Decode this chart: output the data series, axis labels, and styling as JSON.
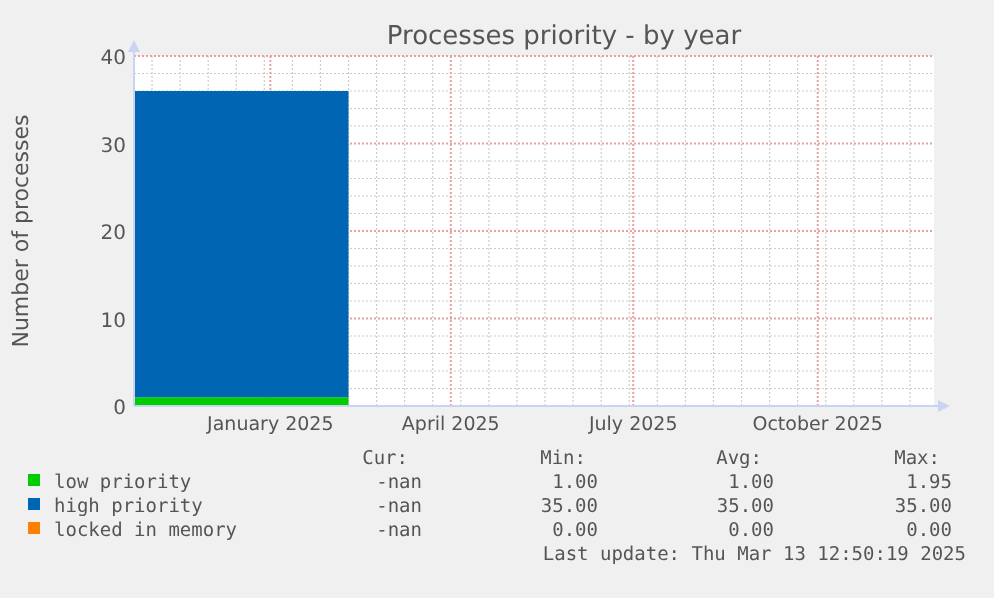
{
  "chart_data": {
    "type": "area",
    "title": "Processes priority - by year",
    "ylabel": "Number of processes",
    "stacked": true,
    "grid": true,
    "legend": "bottom",
    "x": [
      "2024-10-25",
      "2025-02-09"
    ],
    "xlim": [
      "2024-10-25",
      "2025-11-28"
    ],
    "xticks": [
      {
        "value": "2025-01-01",
        "label": "January 2025"
      },
      {
        "value": "2025-04-01",
        "label": "April 2025"
      },
      {
        "value": "2025-07-01",
        "label": "July 2025"
      },
      {
        "value": "2025-10-01",
        "label": "October 2025"
      }
    ],
    "ylim": [
      0,
      40
    ],
    "yticks": [
      0,
      10,
      20,
      30,
      40
    ],
    "series": [
      {
        "name": "low priority",
        "color": "#00cc00",
        "values": [
          1,
          1
        ]
      },
      {
        "name": "high priority",
        "color": "#0066b3",
        "values": [
          35,
          35
        ]
      },
      {
        "name": "locked in memory",
        "color": "#ff8000",
        "values": [
          null,
          null
        ]
      }
    ],
    "annotations": [
      "Cur:",
      "Min:",
      "Avg:",
      "Max:",
      "-nan",
      "1.00",
      "1.00",
      "1.95",
      "-nan",
      "35.00",
      "35.00",
      "35.00",
      "-nan",
      "0.00",
      "0.00",
      "0.00",
      "Last update: Thu Mar 13 12:50:19 2025"
    ]
  }
}
